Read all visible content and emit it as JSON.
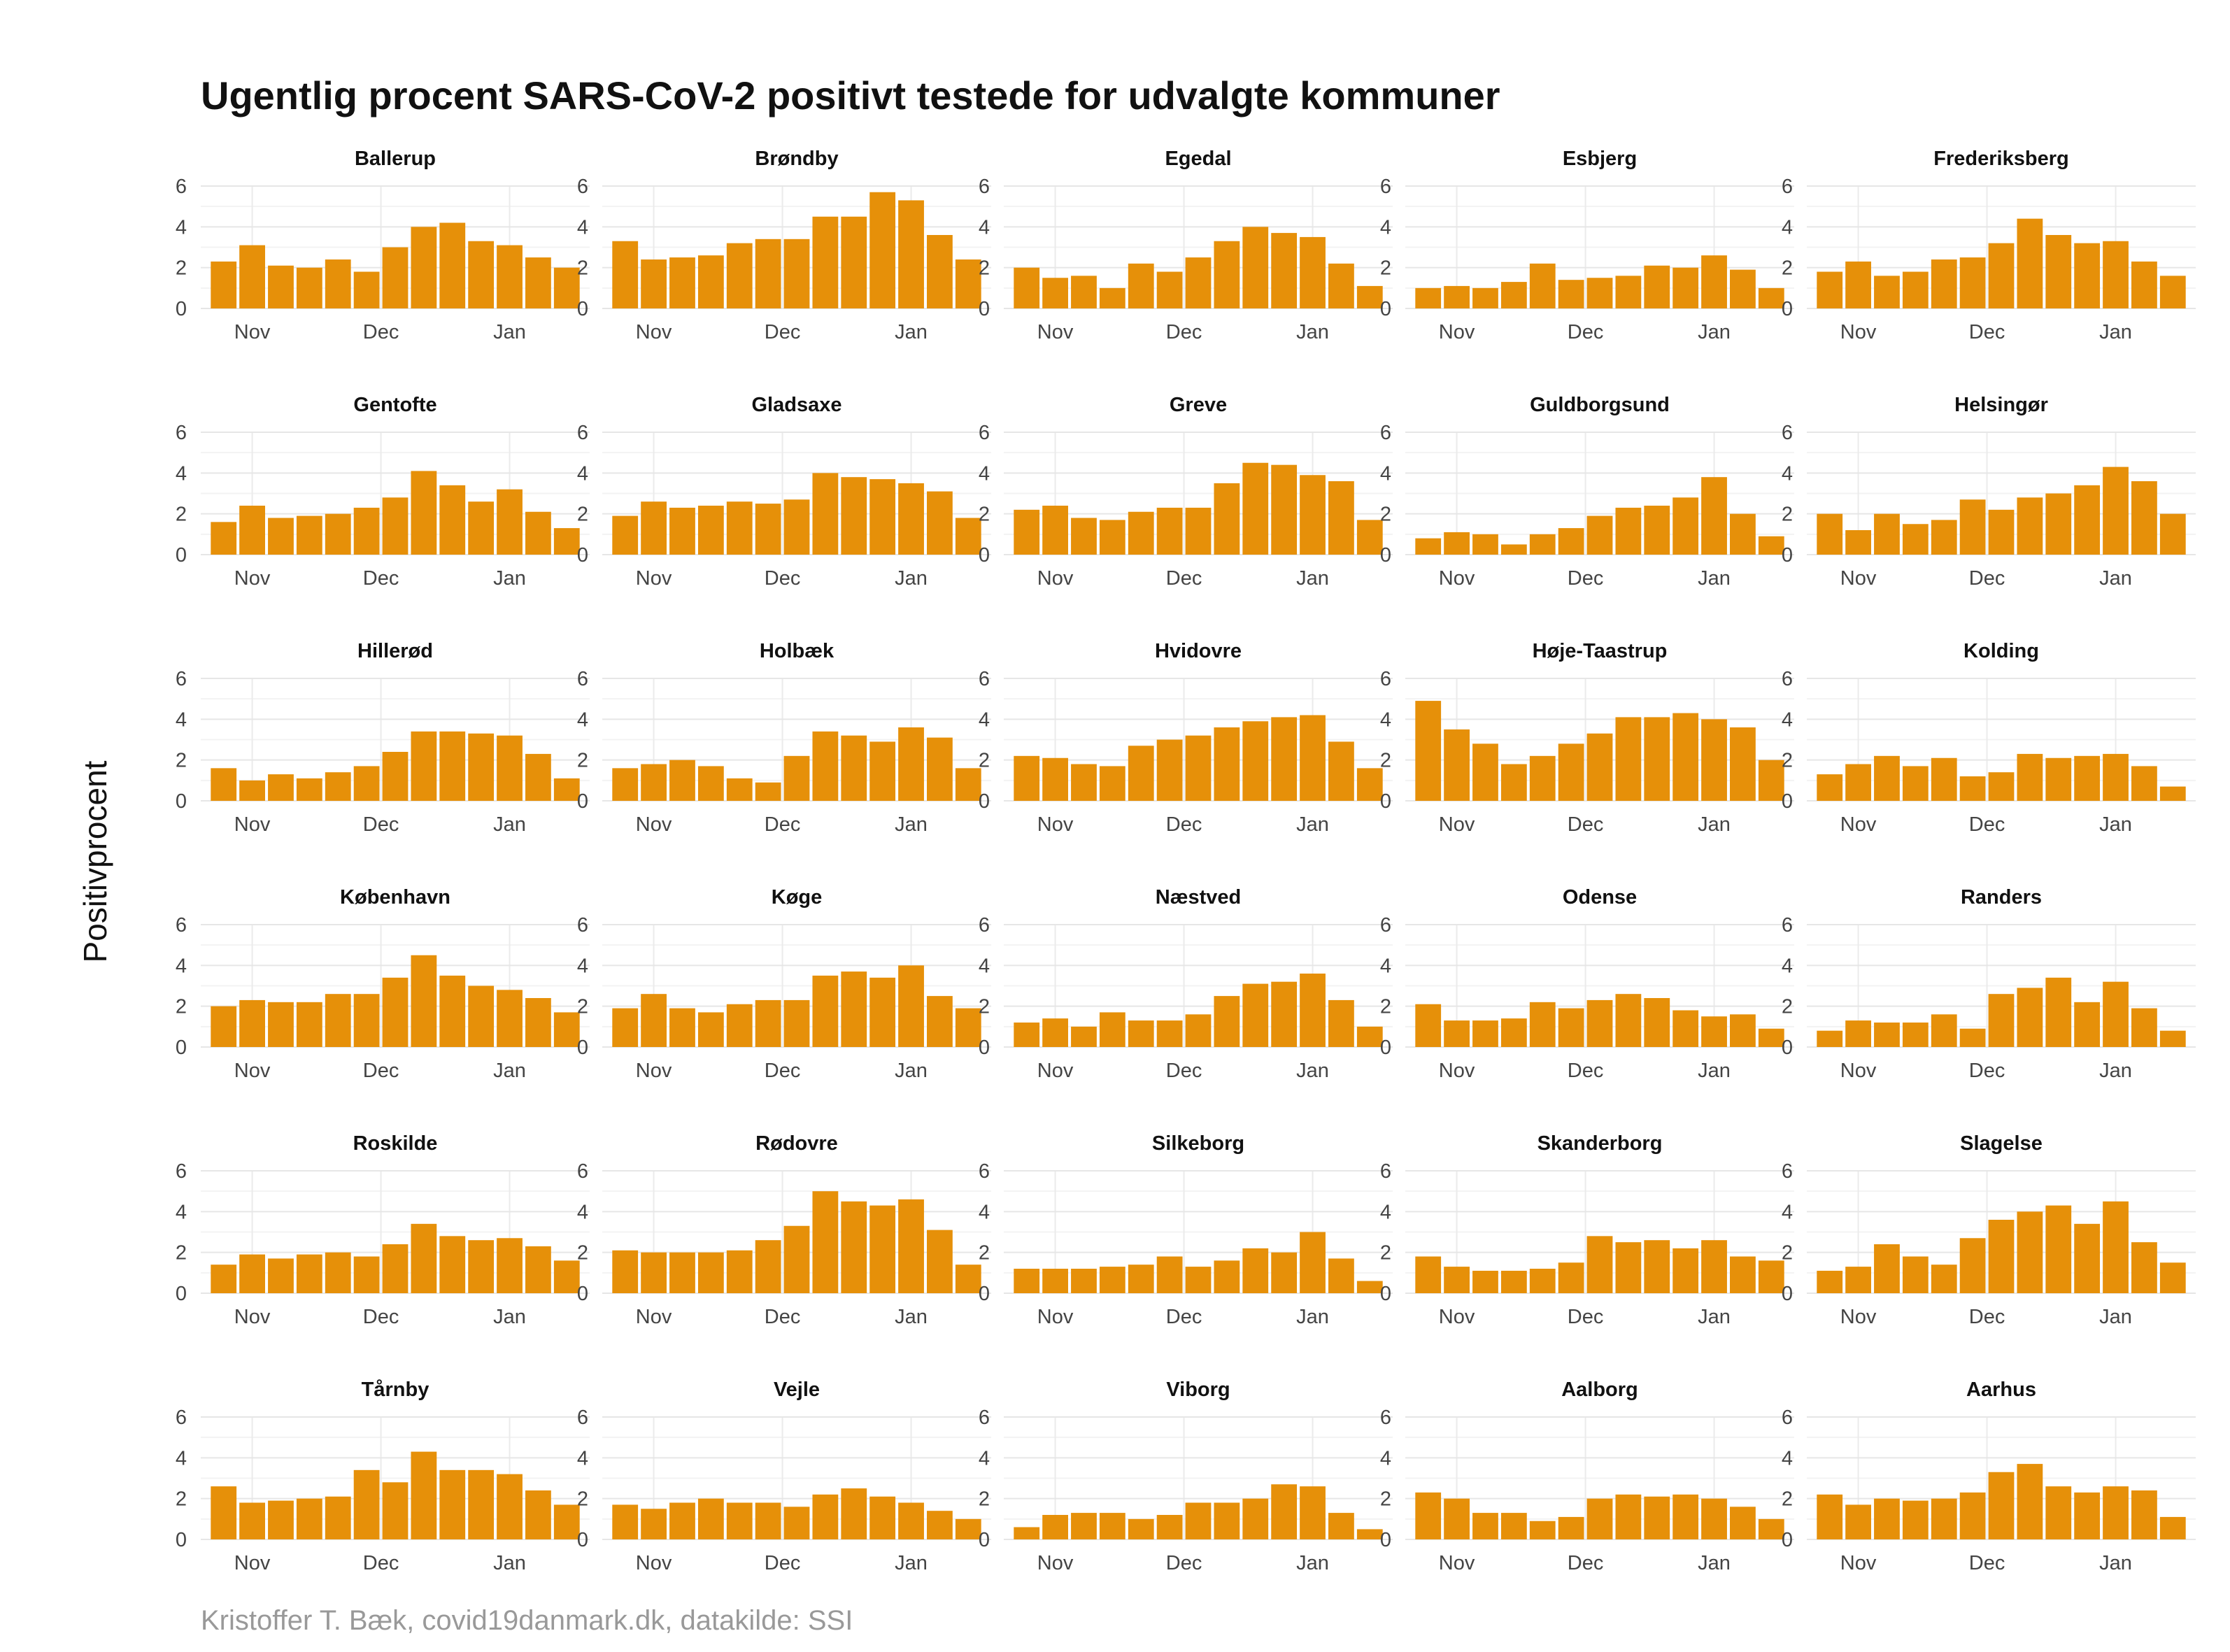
{
  "chart_data": {
    "type": "bar",
    "title": "Ugentlig procent SARS-CoV-2 positivt testede for udvalgte kommuner",
    "ylabel": "Positivprocent",
    "caption": "Kristoffer T. Bæk, covid19danmark.dk, datakilde: SSI",
    "xlabel": "",
    "ylim": [
      0,
      6
    ],
    "y_ticks": [
      "0",
      "2",
      "4",
      "6"
    ],
    "x_ticks": [
      {
        "label": "Nov",
        "week_index": 1
      },
      {
        "label": "Dec",
        "week_index": 5.5
      },
      {
        "label": "Jan",
        "week_index": 10
      }
    ],
    "weeks": 13,
    "bar_color": "#E69009",
    "grid": true,
    "panels": [
      {
        "name": "Ballerup",
        "values": [
          2.3,
          3.1,
          2.1,
          2.0,
          2.4,
          1.8,
          3.0,
          4.0,
          4.2,
          3.3,
          3.1,
          2.5,
          2.0
        ]
      },
      {
        "name": "Brøndby",
        "values": [
          3.3,
          2.4,
          2.5,
          2.6,
          3.2,
          3.4,
          3.4,
          4.5,
          4.5,
          5.7,
          5.3,
          3.6,
          2.4
        ]
      },
      {
        "name": "Egedal",
        "values": [
          2.0,
          1.5,
          1.6,
          1.0,
          2.2,
          1.8,
          2.5,
          3.3,
          4.0,
          3.7,
          3.5,
          2.2,
          1.1
        ]
      },
      {
        "name": "Esbjerg",
        "values": [
          1.0,
          1.1,
          1.0,
          1.3,
          2.2,
          1.4,
          1.5,
          1.6,
          2.1,
          2.0,
          2.6,
          1.9,
          1.0
        ]
      },
      {
        "name": "Frederiksberg",
        "values": [
          1.8,
          2.3,
          1.6,
          1.8,
          2.4,
          2.5,
          3.2,
          4.4,
          3.6,
          3.2,
          3.3,
          2.3,
          1.6
        ]
      },
      {
        "name": "Gentofte",
        "values": [
          1.6,
          2.4,
          1.8,
          1.9,
          2.0,
          2.3,
          2.8,
          4.1,
          3.4,
          2.6,
          3.2,
          2.1,
          1.3
        ]
      },
      {
        "name": "Gladsaxe",
        "values": [
          1.9,
          2.6,
          2.3,
          2.4,
          2.6,
          2.5,
          2.7,
          4.0,
          3.8,
          3.7,
          3.5,
          3.1,
          1.8
        ]
      },
      {
        "name": "Greve",
        "values": [
          2.2,
          2.4,
          1.8,
          1.7,
          2.1,
          2.3,
          2.3,
          3.5,
          4.5,
          4.4,
          3.9,
          3.6,
          1.7
        ]
      },
      {
        "name": "Guldborgsund",
        "values": [
          0.8,
          1.1,
          1.0,
          0.5,
          1.0,
          1.3,
          1.9,
          2.3,
          2.4,
          2.8,
          3.8,
          2.0,
          0.9
        ]
      },
      {
        "name": "Helsingør",
        "values": [
          2.0,
          1.2,
          2.0,
          1.5,
          1.7,
          2.7,
          2.2,
          2.8,
          3.0,
          3.4,
          4.3,
          3.6,
          2.0
        ]
      },
      {
        "name": "Hillerød",
        "values": [
          1.6,
          1.0,
          1.3,
          1.1,
          1.4,
          1.7,
          2.4,
          3.4,
          3.4,
          3.3,
          3.2,
          2.3,
          1.1
        ]
      },
      {
        "name": "Holbæk",
        "values": [
          1.6,
          1.8,
          2.0,
          1.7,
          1.1,
          0.9,
          2.2,
          3.4,
          3.2,
          2.9,
          3.6,
          3.1,
          1.6
        ]
      },
      {
        "name": "Hvidovre",
        "values": [
          2.2,
          2.1,
          1.8,
          1.7,
          2.7,
          3.0,
          3.2,
          3.6,
          3.9,
          4.1,
          4.2,
          2.9,
          1.6
        ]
      },
      {
        "name": "Høje-Taastrup",
        "values": [
          4.9,
          3.5,
          2.8,
          1.8,
          2.2,
          2.8,
          3.3,
          4.1,
          4.1,
          4.3,
          4.0,
          3.6,
          2.0
        ]
      },
      {
        "name": "Kolding",
        "values": [
          1.3,
          1.8,
          2.2,
          1.7,
          2.1,
          1.2,
          1.4,
          2.3,
          2.1,
          2.2,
          2.3,
          1.7,
          0.7
        ]
      },
      {
        "name": "København",
        "values": [
          2.0,
          2.3,
          2.2,
          2.2,
          2.6,
          2.6,
          3.4,
          4.5,
          3.5,
          3.0,
          2.8,
          2.4,
          1.7
        ]
      },
      {
        "name": "Køge",
        "values": [
          1.9,
          2.6,
          1.9,
          1.7,
          2.1,
          2.3,
          2.3,
          3.5,
          3.7,
          3.4,
          4.0,
          2.5,
          1.9
        ]
      },
      {
        "name": "Næstved",
        "values": [
          1.2,
          1.4,
          1.0,
          1.7,
          1.3,
          1.3,
          1.6,
          2.5,
          3.1,
          3.2,
          3.6,
          2.3,
          1.0
        ]
      },
      {
        "name": "Odense",
        "values": [
          2.1,
          1.3,
          1.3,
          1.4,
          2.2,
          1.9,
          2.3,
          2.6,
          2.4,
          1.8,
          1.5,
          1.6,
          0.9
        ]
      },
      {
        "name": "Randers",
        "values": [
          0.8,
          1.3,
          1.2,
          1.2,
          1.6,
          0.9,
          2.6,
          2.9,
          3.4,
          2.2,
          3.2,
          1.9,
          0.8
        ]
      },
      {
        "name": "Roskilde",
        "values": [
          1.4,
          1.9,
          1.7,
          1.9,
          2.0,
          1.8,
          2.4,
          3.4,
          2.8,
          2.6,
          2.7,
          2.3,
          1.6
        ]
      },
      {
        "name": "Rødovre",
        "values": [
          2.1,
          2.0,
          2.0,
          2.0,
          2.1,
          2.6,
          3.3,
          5.0,
          4.5,
          4.3,
          4.6,
          3.1,
          1.4
        ]
      },
      {
        "name": "Silkeborg",
        "values": [
          1.2,
          1.2,
          1.2,
          1.3,
          1.4,
          1.8,
          1.3,
          1.6,
          2.2,
          2.0,
          3.0,
          1.7,
          0.6
        ]
      },
      {
        "name": "Skanderborg",
        "values": [
          1.8,
          1.3,
          1.1,
          1.1,
          1.2,
          1.5,
          2.8,
          2.5,
          2.6,
          2.2,
          2.6,
          1.8,
          1.6
        ]
      },
      {
        "name": "Slagelse",
        "values": [
          1.1,
          1.3,
          2.4,
          1.8,
          1.4,
          2.7,
          3.6,
          4.0,
          4.3,
          3.4,
          4.5,
          2.5,
          1.5
        ]
      },
      {
        "name": "Tårnby",
        "values": [
          2.6,
          1.8,
          1.9,
          2.0,
          2.1,
          3.4,
          2.8,
          4.3,
          3.4,
          3.4,
          3.2,
          2.4,
          1.7
        ]
      },
      {
        "name": "Vejle",
        "values": [
          1.7,
          1.5,
          1.8,
          2.0,
          1.8,
          1.8,
          1.6,
          2.2,
          2.5,
          2.1,
          1.8,
          1.4,
          1.0
        ]
      },
      {
        "name": "Viborg",
        "values": [
          0.6,
          1.2,
          1.3,
          1.3,
          1.0,
          1.2,
          1.8,
          1.8,
          2.0,
          2.7,
          2.6,
          1.3,
          0.5
        ]
      },
      {
        "name": "Aalborg",
        "values": [
          2.3,
          2.0,
          1.3,
          1.3,
          0.9,
          1.1,
          2.0,
          2.2,
          2.1,
          2.2,
          2.0,
          1.6,
          1.0
        ]
      },
      {
        "name": "Aarhus",
        "values": [
          2.2,
          1.7,
          2.0,
          1.9,
          2.0,
          2.3,
          3.3,
          3.7,
          2.6,
          2.3,
          2.6,
          2.4,
          1.1
        ]
      }
    ]
  }
}
